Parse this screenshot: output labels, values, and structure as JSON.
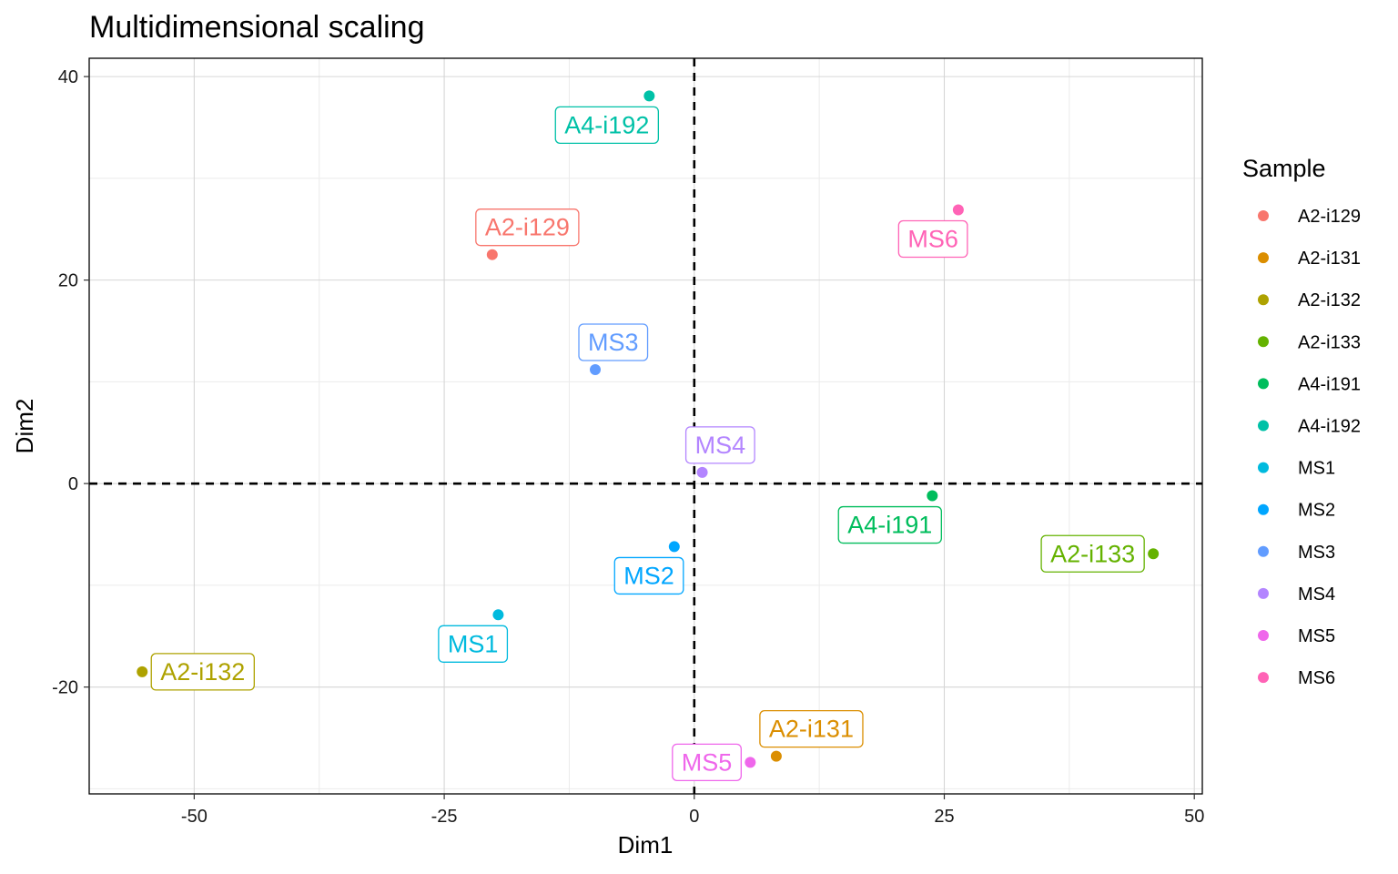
{
  "chart_data": {
    "type": "scatter",
    "title": "Multidimensional scaling",
    "xlabel": "Dim1",
    "ylabel": "Dim2",
    "xlim": [
      -60.5,
      50.8
    ],
    "ylim": [
      -30.5,
      41.8
    ],
    "x_ticks": [
      -50,
      -25,
      0,
      25,
      50
    ],
    "y_ticks": [
      -20,
      0,
      20,
      40
    ],
    "x_tick_labels": [
      "-50",
      "-25",
      "0",
      "25",
      "50"
    ],
    "y_tick_labels": [
      "-20",
      "0",
      "20",
      "40"
    ],
    "grid": true,
    "reference_lines": {
      "x": 0,
      "y": 0,
      "style": "dashed"
    },
    "legend": {
      "title": "Sample",
      "placement": "right"
    },
    "points": [
      {
        "name": "A2-i129",
        "x": -20.2,
        "y": 22.5,
        "color": "#F8766D",
        "label_pos": "above"
      },
      {
        "name": "A2-i131",
        "x": 8.2,
        "y": -26.8,
        "color": "#DB8E00",
        "label_pos": "above"
      },
      {
        "name": "A2-i132",
        "x": -55.2,
        "y": -18.5,
        "color": "#AEA200",
        "label_pos": "right"
      },
      {
        "name": "A2-i133",
        "x": 45.9,
        "y": -6.9,
        "color": "#64B200",
        "label_pos": "left"
      },
      {
        "name": "A4-i191",
        "x": 23.8,
        "y": -1.2,
        "color": "#00BD5C",
        "label_pos": "below"
      },
      {
        "name": "A4-i192",
        "x": -4.5,
        "y": 38.1,
        "color": "#00C1A7",
        "label_pos": "below"
      },
      {
        "name": "MS1",
        "x": -19.6,
        "y": -12.9,
        "color": "#00BADE",
        "label_pos": "below"
      },
      {
        "name": "MS2",
        "x": -2.0,
        "y": -6.2,
        "color": "#00A6FF",
        "label_pos": "below"
      },
      {
        "name": "MS3",
        "x": -9.9,
        "y": 11.2,
        "color": "#619CFF",
        "label_pos": "above"
      },
      {
        "name": "MS4",
        "x": 0.8,
        "y": 1.1,
        "color": "#B385FF",
        "label_pos": "above"
      },
      {
        "name": "MS5",
        "x": 5.6,
        "y": -27.4,
        "color": "#EF67EB",
        "label_pos": "left"
      },
      {
        "name": "MS6",
        "x": 26.4,
        "y": 26.9,
        "color": "#FF63B6",
        "label_pos": "below"
      }
    ]
  }
}
